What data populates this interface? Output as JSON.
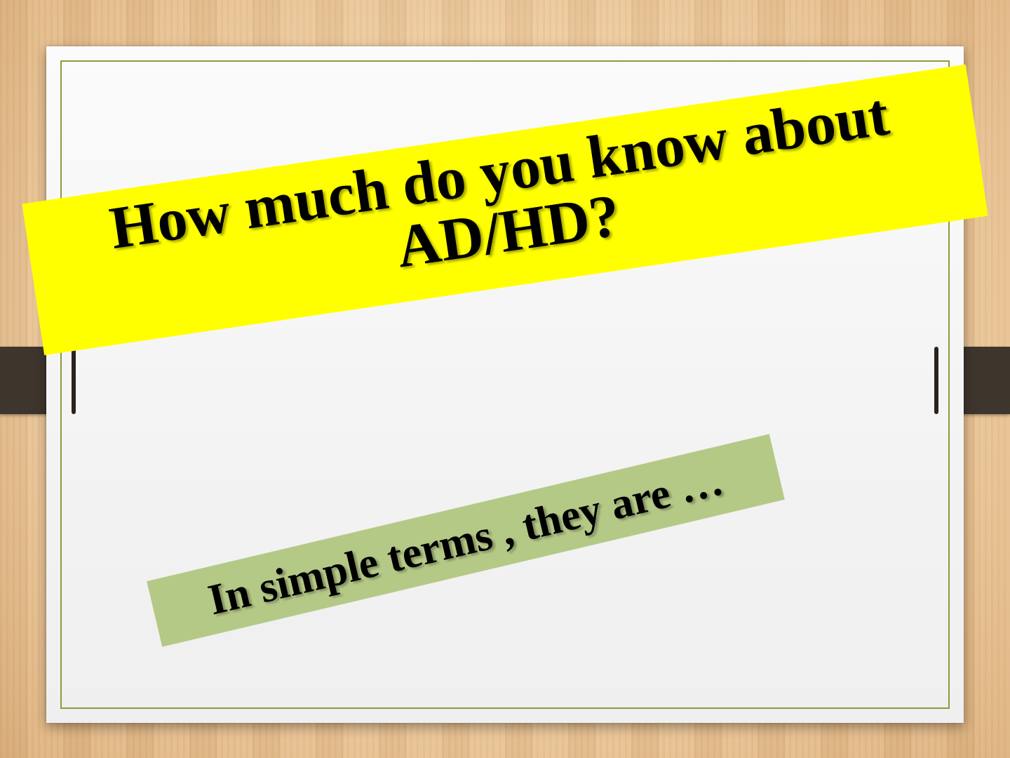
{
  "slide": {
    "title_lines": [
      "How much do you know about",
      "AD/HD?"
    ],
    "subtitle": "In simple terms , they are …"
  },
  "colors": {
    "title_banner": "#ffff00",
    "subtitle_banner": "#b5c987",
    "paper_border": "#8c9a3c",
    "strap": "#3e352d"
  }
}
